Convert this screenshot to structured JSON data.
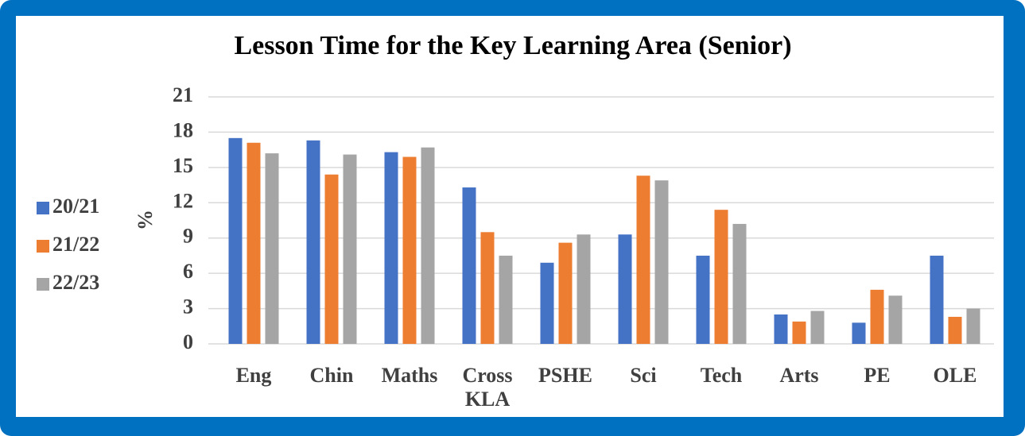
{
  "chart_data": {
    "type": "bar",
    "title": "Lesson Time for the Key Learning Area (Senior)",
    "y_label": "%",
    "categories": [
      "Eng",
      "Chin",
      "Maths",
      "Cross KLA",
      "PSHE",
      "Sci",
      "Tech",
      "Arts",
      "PE",
      "OLE"
    ],
    "series": [
      {
        "name": "20/21",
        "color": "#4472c4",
        "values": [
          17.5,
          17.3,
          16.3,
          13.3,
          6.9,
          9.3,
          7.5,
          2.5,
          1.8,
          7.5
        ]
      },
      {
        "name": "21/22",
        "color": "#ed7d31",
        "values": [
          17.1,
          14.4,
          15.9,
          9.5,
          8.6,
          14.3,
          11.4,
          1.9,
          4.6,
          2.3
        ]
      },
      {
        "name": "22/23",
        "color": "#a5a5a5",
        "values": [
          16.2,
          16.1,
          16.7,
          7.5,
          9.3,
          13.9,
          10.2,
          2.8,
          4.1,
          3.0
        ]
      }
    ],
    "ylim": [
      0,
      21
    ],
    "yticks": [
      0,
      3,
      6,
      9,
      12,
      15,
      18,
      21
    ],
    "grid": true,
    "legend": "left"
  }
}
